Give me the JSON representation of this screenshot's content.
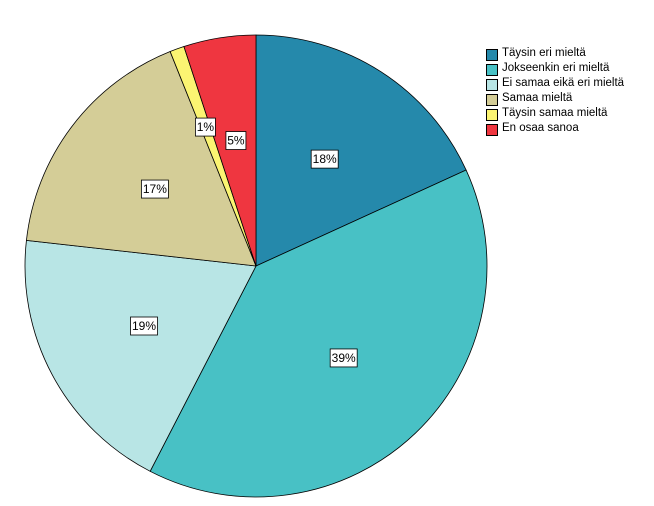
{
  "chart_data": {
    "type": "pie",
    "title": "",
    "start_angle_deg": 0,
    "direction": "clockwise",
    "slices": [
      {
        "label": "Täysin eri mieltä",
        "value": 18,
        "display": "18%",
        "color": "#2589ab"
      },
      {
        "label": "Jokseenkin eri mieltä",
        "value": 39,
        "display": "39%",
        "color": "#48c1c5"
      },
      {
        "label": "Ei samaa eikä eri mieltä",
        "value": 19,
        "display": "19%",
        "color": "#b8e5e5"
      },
      {
        "label": "Samaa mieltä",
        "value": 17,
        "display": "17%",
        "color": "#d4cd97"
      },
      {
        "label": "Täysin samaa mieltä",
        "value": 1,
        "display": "1%",
        "color": "#fbf472"
      },
      {
        "label": "En osaa sanoa",
        "value": 5,
        "display": "5%",
        "color": "#ef3640"
      }
    ],
    "legend_position": "top-right"
  }
}
